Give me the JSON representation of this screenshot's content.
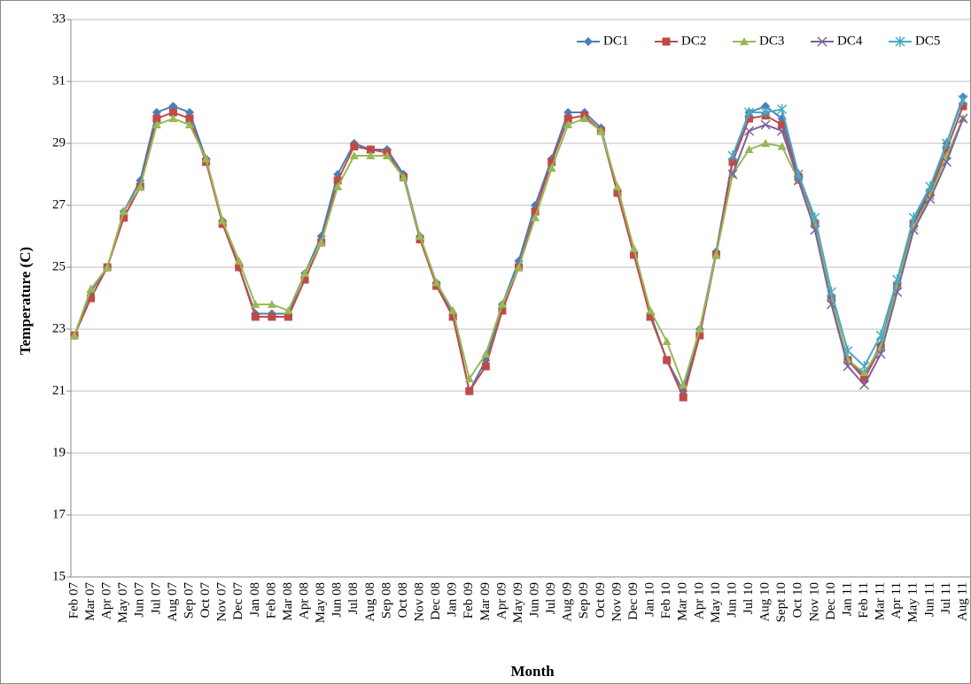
{
  "chart_data": {
    "type": "line",
    "xlabel": "Month",
    "ylabel": "Temperature (C)",
    "categories": [
      "Feb 07",
      "Mar 07",
      "Apr 07",
      "May 07",
      "Jun 07",
      "Jul 07",
      "Aug 07",
      "Sep 07",
      "Oct 07",
      "Nov 07",
      "Dec 07",
      "Jan 08",
      "Feb 08",
      "Mar 08",
      "Apr 08",
      "May 08",
      "Jun 08",
      "Jul 08",
      "Aug 08",
      "Sep 08",
      "Oct 08",
      "Nov 08",
      "Dec 08",
      "Jan 09",
      "Feb 09",
      "Mar 09",
      "Apr 09",
      "May 09",
      "Jun 09",
      "Jul 09",
      "Aug 09",
      "Sep 09",
      "Oct 09",
      "Nov 09",
      "Dec 09",
      "Jan 10",
      "Feb 10",
      "Mar 10",
      "Apr 10",
      "May 10",
      "Jun 10",
      "Jul 10",
      "Aug 10",
      "Sept 10",
      "Oct 10",
      "Nov 10",
      "Dec 10",
      "Jan 11",
      "Feb 11",
      "Mar 11",
      "Apr 11",
      "May 11",
      "Jun 11",
      "Jul 11",
      "Aug 11"
    ],
    "series": [
      {
        "name": "DC1",
        "color": "#4a7ebb",
        "values": [
          22.8,
          24.2,
          25,
          26.8,
          27.8,
          30,
          30.2,
          30,
          28.5,
          26.5,
          25,
          23.5,
          23.5,
          23.5,
          24.8,
          26,
          28,
          29,
          28.8,
          28.8,
          28,
          26,
          24.5,
          23.5,
          21,
          22,
          23.8,
          25.2,
          27,
          28.5,
          30,
          30,
          29.5,
          27.5,
          25.5,
          23.5,
          22,
          21,
          23,
          25.5,
          28.5,
          30,
          30.2,
          29.8,
          28,
          26.5,
          24,
          22,
          21.5,
          22.5,
          24.5,
          26.5,
          27.5,
          29,
          30.5
        ]
      },
      {
        "name": "DC2",
        "color": "#be4b48",
        "values": [
          22.8,
          24,
          25,
          26.6,
          27.6,
          29.8,
          30,
          29.8,
          28.4,
          26.4,
          25,
          23.4,
          23.4,
          23.4,
          24.6,
          25.8,
          27.8,
          28.9,
          28.8,
          28.7,
          27.9,
          25.9,
          24.4,
          23.4,
          21,
          21.8,
          23.6,
          25,
          26.8,
          28.4,
          29.8,
          29.9,
          29.4,
          27.4,
          25.4,
          23.4,
          22,
          20.8,
          22.8,
          25.4,
          28.4,
          29.8,
          29.9,
          29.6,
          27.9,
          26.4,
          24,
          22,
          21.4,
          22.4,
          24.4,
          26.4,
          27.4,
          28.8,
          30.2
        ]
      },
      {
        "name": "DC3",
        "color": "#98b954",
        "values": [
          22.8,
          24.3,
          25,
          26.8,
          27.6,
          29.6,
          29.8,
          29.6,
          28.5,
          26.5,
          25.2,
          23.8,
          23.8,
          23.6,
          24.8,
          25.8,
          27.6,
          28.6,
          28.6,
          28.6,
          27.9,
          26,
          24.5,
          23.6,
          21.4,
          22.2,
          23.8,
          25,
          26.6,
          28.2,
          29.6,
          29.8,
          29.4,
          27.6,
          25.6,
          23.6,
          22.6,
          21.2,
          23,
          25.4,
          28,
          28.8,
          29,
          28.9,
          27.8,
          26.4,
          24,
          22,
          21.6,
          22.4,
          24.4,
          26.3,
          27.3,
          28.6,
          29.8
        ]
      },
      {
        "name": "DC4",
        "color": "#7d60a0",
        "values": [
          null,
          null,
          null,
          null,
          null,
          null,
          null,
          null,
          null,
          null,
          null,
          null,
          null,
          null,
          null,
          null,
          null,
          null,
          null,
          null,
          null,
          null,
          null,
          null,
          null,
          null,
          null,
          null,
          null,
          null,
          null,
          null,
          null,
          null,
          null,
          null,
          null,
          null,
          null,
          null,
          28,
          29.4,
          29.6,
          29.4,
          27.8,
          26.2,
          23.8,
          21.8,
          21.2,
          22.2,
          24.2,
          26.2,
          27.2,
          28.4,
          29.8
        ]
      },
      {
        "name": "DC5",
        "color": "#46aac5",
        "values": [
          null,
          null,
          null,
          null,
          null,
          null,
          null,
          null,
          null,
          null,
          null,
          null,
          null,
          null,
          null,
          null,
          null,
          null,
          null,
          null,
          null,
          null,
          null,
          null,
          null,
          null,
          null,
          null,
          null,
          null,
          null,
          null,
          null,
          null,
          null,
          null,
          null,
          null,
          null,
          null,
          28.6,
          30,
          30,
          30.1,
          28,
          26.6,
          24.2,
          22.3,
          21.8,
          22.8,
          24.6,
          26.6,
          27.6,
          29,
          30.4
        ]
      }
    ],
    "ylim": [
      15,
      33
    ],
    "yticks": [
      15,
      17,
      19,
      21,
      23,
      25,
      27,
      29,
      31,
      33
    ],
    "grid": true,
    "legend": "top-right"
  }
}
